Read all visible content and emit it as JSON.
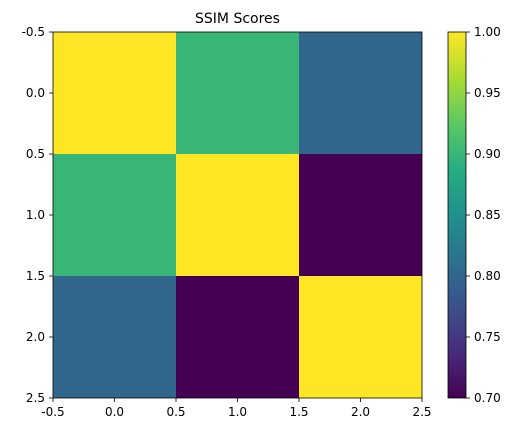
{
  "chart_data": {
    "type": "heatmap",
    "title": "SSIM Scores",
    "xlabel": "",
    "ylabel": "",
    "matrix": [
      [
        1.0,
        0.9,
        0.8
      ],
      [
        0.9,
        1.0,
        0.7
      ],
      [
        0.8,
        0.7,
        1.0
      ]
    ],
    "x_range": [
      -0.5,
      2.5
    ],
    "y_range": [
      2.5,
      -0.5
    ],
    "x_ticks": [
      "-0.5",
      "0.0",
      "0.5",
      "1.0",
      "1.5",
      "2.0",
      "2.5"
    ],
    "y_ticks": [
      "-0.5",
      "0.0",
      "0.5",
      "1.0",
      "1.5",
      "2.0",
      "2.5"
    ],
    "x_tick_values": [
      -0.5,
      0.0,
      0.5,
      1.0,
      1.5,
      2.0,
      2.5
    ],
    "y_tick_values": [
      -0.5,
      0.0,
      0.5,
      1.0,
      1.5,
      2.0,
      2.5
    ],
    "colorbar": {
      "range": [
        0.7,
        1.0
      ],
      "ticks": [
        "0.70",
        "0.75",
        "0.80",
        "0.85",
        "0.90",
        "0.95",
        "1.00"
      ],
      "tick_values": [
        0.7,
        0.75,
        0.8,
        0.85,
        0.9,
        0.95,
        1.0
      ],
      "colormap": "viridis"
    },
    "grid": false
  }
}
